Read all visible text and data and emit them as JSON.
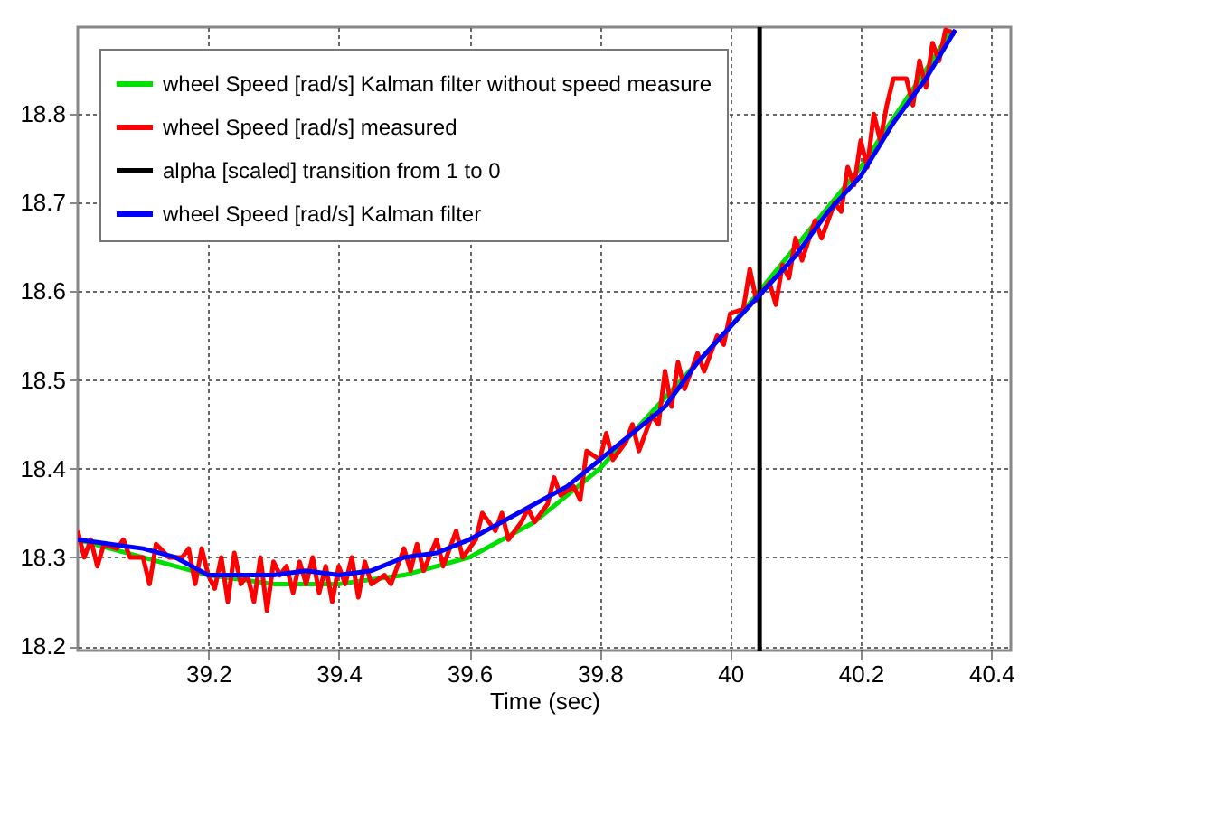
{
  "chart_data": {
    "type": "line",
    "xlabel": "Time (sec)",
    "xlim": [
      39.0,
      40.43
    ],
    "ylim": [
      18.195,
      18.898
    ],
    "xticks": [
      39.2,
      39.4,
      39.6,
      39.8,
      40,
      40.2,
      40.4
    ],
    "yticks": [
      18.2,
      18.3,
      18.4,
      18.5,
      18.6,
      18.7,
      18.8
    ],
    "grid": true,
    "legend": "top left",
    "line_style": "solid",
    "marker": "none",
    "series": [
      {
        "name": "wheel Speed [rad/s] Kalman filter without speed measure",
        "color": "#00e000",
        "x": [
          39.0,
          39.1,
          39.2,
          39.3,
          39.4,
          39.5,
          39.6,
          39.7,
          39.8,
          39.9,
          40.0,
          40.1,
          40.2,
          40.3,
          40.34
        ],
        "values": [
          18.32,
          18.3,
          18.28,
          18.27,
          18.27,
          18.28,
          18.3,
          18.34,
          18.4,
          18.48,
          18.56,
          18.65,
          18.74,
          18.85,
          18.895
        ]
      },
      {
        "name": "wheel Speed [rad/s] measured",
        "color": "#ff0000",
        "x": [
          39.0,
          39.01,
          39.02,
          39.03,
          39.04,
          39.06,
          39.07,
          39.08,
          39.1,
          39.11,
          39.12,
          39.14,
          39.16,
          39.17,
          39.18,
          39.19,
          39.2,
          39.21,
          39.22,
          39.23,
          39.24,
          39.25,
          39.26,
          39.27,
          39.28,
          39.29,
          39.3,
          39.31,
          39.32,
          39.33,
          39.34,
          39.35,
          39.36,
          39.37,
          39.38,
          39.39,
          39.4,
          39.41,
          39.42,
          39.43,
          39.44,
          39.45,
          39.47,
          39.48,
          39.5,
          39.51,
          39.52,
          39.53,
          39.55,
          39.56,
          39.58,
          39.59,
          39.61,
          39.62,
          39.64,
          39.65,
          39.66,
          39.68,
          39.69,
          39.7,
          39.72,
          39.73,
          39.74,
          39.76,
          39.77,
          39.78,
          39.8,
          39.81,
          39.82,
          39.84,
          39.85,
          39.86,
          39.88,
          39.89,
          39.9,
          39.91,
          39.92,
          39.93,
          39.95,
          39.96,
          39.98,
          39.99,
          40.0,
          40.02,
          40.03,
          40.04,
          40.06,
          40.07,
          40.08,
          40.09,
          40.1,
          40.11,
          40.13,
          40.14,
          40.16,
          40.17,
          40.18,
          40.19,
          40.2,
          40.21,
          40.22,
          40.23,
          40.24,
          40.25,
          40.27,
          40.28,
          40.29,
          40.3,
          40.31,
          40.32,
          40.33,
          40.345
        ],
        "values": [
          18.33,
          18.3,
          18.32,
          18.29,
          18.315,
          18.31,
          18.32,
          18.3,
          18.3,
          18.27,
          18.315,
          18.3,
          18.3,
          18.31,
          18.27,
          18.31,
          18.28,
          18.265,
          18.3,
          18.25,
          18.305,
          18.27,
          18.28,
          18.25,
          18.3,
          18.24,
          18.295,
          18.28,
          18.29,
          18.26,
          18.295,
          18.27,
          18.3,
          18.26,
          18.29,
          18.25,
          18.29,
          18.27,
          18.3,
          18.255,
          18.295,
          18.27,
          18.28,
          18.27,
          18.31,
          18.285,
          18.315,
          18.285,
          18.32,
          18.29,
          18.33,
          18.3,
          18.32,
          18.35,
          18.33,
          18.35,
          18.32,
          18.34,
          18.355,
          18.34,
          18.36,
          18.39,
          18.37,
          18.38,
          18.365,
          18.42,
          18.41,
          18.44,
          18.41,
          18.43,
          18.45,
          18.42,
          18.46,
          18.45,
          18.51,
          18.47,
          18.52,
          18.49,
          18.53,
          18.51,
          18.55,
          18.54,
          18.575,
          18.58,
          18.625,
          18.59,
          18.61,
          18.585,
          18.63,
          18.615,
          18.66,
          18.635,
          18.68,
          18.66,
          18.7,
          18.69,
          18.74,
          18.72,
          18.77,
          18.74,
          18.8,
          18.77,
          18.81,
          18.84,
          18.84,
          18.81,
          18.86,
          18.83,
          18.88,
          18.86,
          18.895,
          18.89
        ]
      },
      {
        "name": "alpha [scaled] transition from 1 to 0",
        "color": "#000000",
        "x": [
          40.045,
          40.045
        ],
        "values": [
          18.195,
          18.898
        ]
      },
      {
        "name": "wheel Speed [rad/s] Kalman filter",
        "color": "#0000ff",
        "x": [
          39.0,
          39.05,
          39.1,
          39.15,
          39.2,
          39.25,
          39.3,
          39.35,
          39.4,
          39.45,
          39.5,
          39.55,
          39.6,
          39.65,
          39.7,
          39.75,
          39.8,
          39.85,
          39.9,
          39.95,
          40.0,
          40.05,
          40.1,
          40.15,
          40.2,
          40.25,
          40.3,
          40.345
        ],
        "values": [
          18.32,
          18.315,
          18.31,
          18.3,
          18.28,
          18.28,
          18.28,
          18.285,
          18.28,
          18.285,
          18.3,
          18.305,
          18.32,
          18.34,
          18.36,
          18.38,
          18.41,
          18.44,
          18.47,
          18.52,
          18.56,
          18.6,
          18.64,
          18.69,
          18.73,
          18.79,
          18.84,
          18.895
        ]
      }
    ]
  }
}
